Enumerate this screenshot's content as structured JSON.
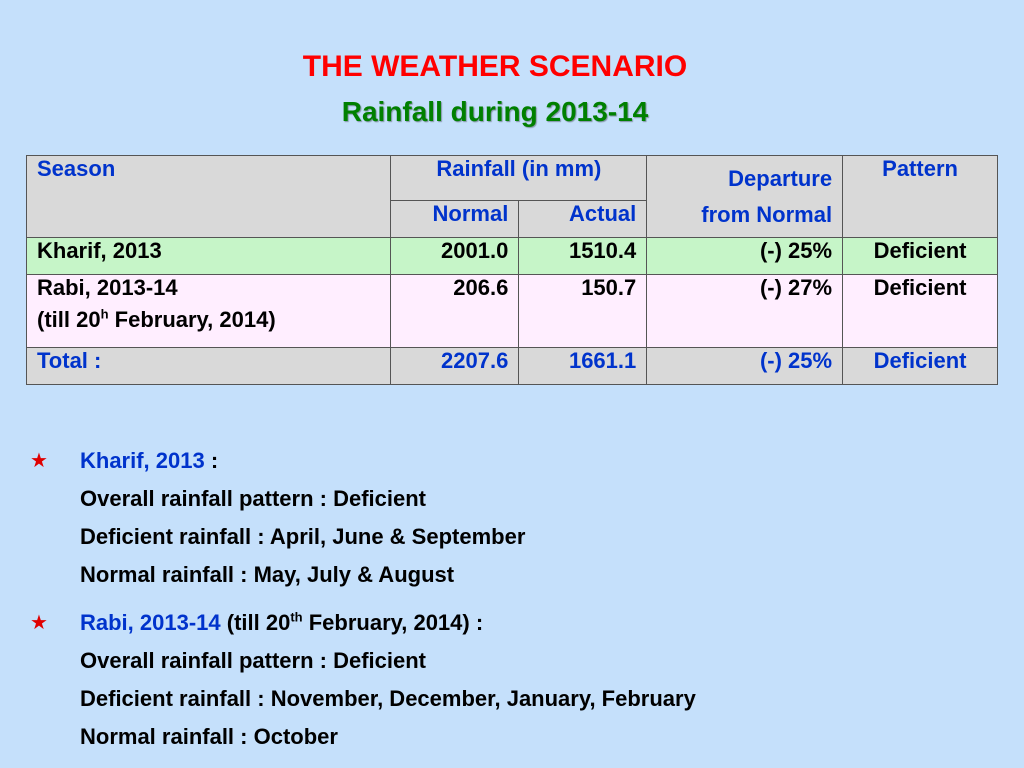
{
  "slide": {
    "title": "THE WEATHER SCENARIO",
    "subtitle": "Rainfall during 2013-14"
  },
  "table": {
    "headers": {
      "season": "Season",
      "rainfall": "Rainfall (in mm)",
      "normal": "Normal",
      "actual": "Actual",
      "departure_line1": "Departure",
      "departure_line2": "from Normal",
      "pattern": "Pattern"
    },
    "rows": [
      {
        "season": "Kharif, 2013",
        "normal": "2001.0",
        "actual": "1510.4",
        "departure": "(-) 25%",
        "pattern": "Deficient"
      },
      {
        "season": "Rabi, 2013-14",
        "season_note_pre": "(till 20",
        "season_note_sup": "h",
        "season_note_post": " February, 2014)",
        "normal": "206.6",
        "actual": "150.7",
        "departure": "(-) 27%",
        "pattern": "Deficient"
      },
      {
        "season": "Total :",
        "normal": "2207.6",
        "actual": "1661.1",
        "departure": "(-) 25%",
        "pattern": "Deficient"
      }
    ]
  },
  "notes": {
    "star_glyph": "★",
    "kharif": {
      "label": "Kharif, 2013",
      "suffix": " :",
      "lines": [
        "Overall rainfall pattern : Deficient",
        "Deficient rainfall : April, June & September",
        "Normal rainfall :  May, July & August"
      ]
    },
    "rabi": {
      "label": "Rabi, 2013-14",
      "suffix_pre": " (till 20",
      "suffix_sup": "th",
      "suffix_post": " February, 2014) :",
      "lines": [
        "Overall rainfall pattern : Deficient",
        "Deficient rainfall : November, December, January, February",
        "Normal rainfall : October"
      ]
    }
  },
  "colors": {
    "background": "#c5e0fb",
    "title": "#ff0000",
    "subtitle": "#008000",
    "header_text": "#0033cc",
    "kharif_row": "#c6f5c8",
    "rabi_row": "#ffeeff",
    "header_bg": "#d9d9d9"
  }
}
